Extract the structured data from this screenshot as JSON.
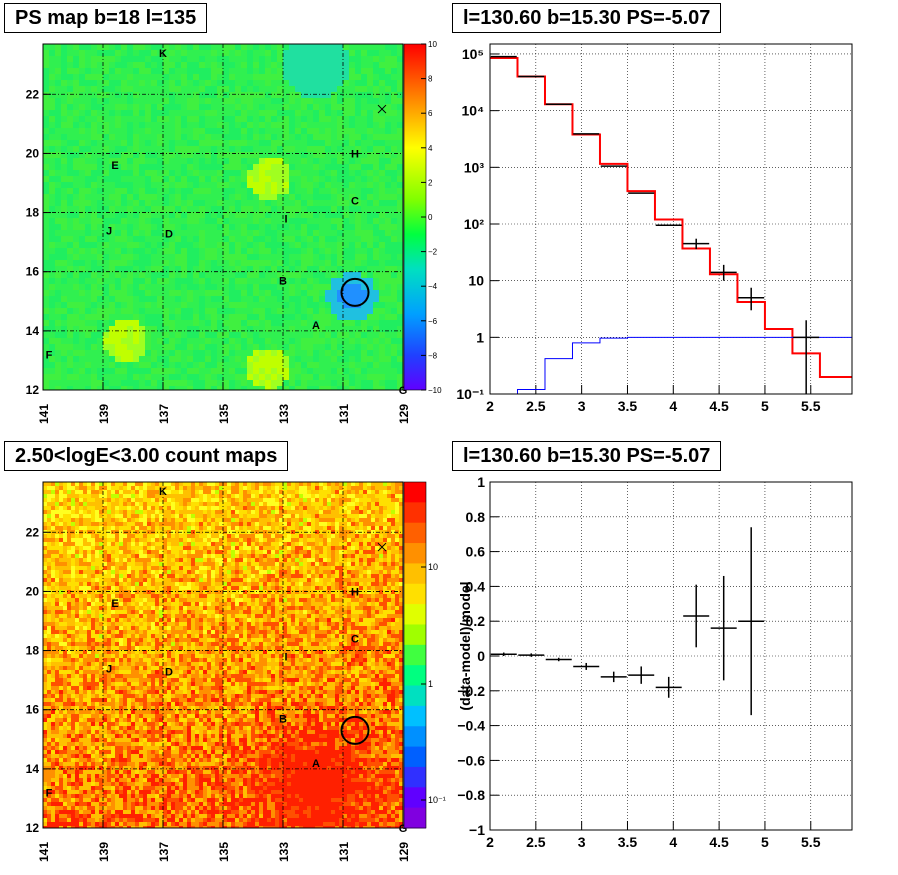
{
  "titles": {
    "tl": "PS map b=18 l=135",
    "tr": "l=130.60 b=15.30 PS=-5.07",
    "bl": "2.50<logE<3.00 count maps",
    "br": "l=130.60 b=15.30 PS=-5.07"
  },
  "maps": {
    "x_ticks": [
      "141",
      "139",
      "137",
      "135",
      "133",
      "131",
      "129"
    ],
    "y_ticks": [
      "12",
      "14",
      "16",
      "18",
      "20",
      "22"
    ],
    "xlim": [
      141,
      129
    ],
    "ylim": [
      12,
      23.7
    ],
    "labels": [
      {
        "t": "K",
        "l": 137.0,
        "b": 23.4
      },
      {
        "t": "H",
        "l": 130.6,
        "b": 20.0
      },
      {
        "t": "E",
        "l": 138.6,
        "b": 19.6
      },
      {
        "t": "C",
        "l": 130.6,
        "b": 18.4
      },
      {
        "t": "I",
        "l": 132.9,
        "b": 17.8
      },
      {
        "t": "J",
        "l": 138.8,
        "b": 17.4
      },
      {
        "t": "D",
        "l": 136.8,
        "b": 17.3
      },
      {
        "t": "B",
        "l": 133.0,
        "b": 15.7
      },
      {
        "t": "A",
        "l": 131.9,
        "b": 14.2
      },
      {
        "t": "F",
        "l": 140.8,
        "b": 13.2
      },
      {
        "t": "G",
        "l": 129.0,
        "b": 12.0
      }
    ],
    "cross": {
      "l": 129.7,
      "b": 21.5
    },
    "circle": {
      "l": 130.6,
      "b": 15.3,
      "r": 0.45
    },
    "ps_colorbar": {
      "min": -10,
      "max": 10,
      "ticks": [
        "10",
        "8",
        "6",
        "4",
        "2",
        "0",
        "−2",
        "−4",
        "−6",
        "−8",
        "−10"
      ]
    },
    "count_colorbar": {
      "ticks": [
        "10",
        "1",
        "10⁻¹"
      ]
    }
  },
  "chart_data": [
    {
      "type": "line",
      "panel": "top-right",
      "xlim": [
        2.0,
        5.95
      ],
      "ylog": true,
      "ylim": [
        0.1,
        150000
      ],
      "x_ticks": [
        "2",
        "2.5",
        "3",
        "3.5",
        "4",
        "4.5",
        "5",
        "5.5"
      ],
      "y_ticks": [
        "10⁵",
        "10⁴",
        "10³",
        "10²",
        "10",
        "1",
        "10⁻¹"
      ],
      "grid": true,
      "series": [
        {
          "color": "#ff0000",
          "style": "step",
          "edges": [
            2.0,
            2.3,
            2.6,
            2.9,
            3.2,
            3.5,
            3.8,
            4.1,
            4.4,
            4.7,
            5.0,
            5.3,
            5.6,
            5.95
          ],
          "values": [
            85000,
            40000,
            13000,
            3800,
            1150,
            380,
            120,
            37,
            13,
            4.2,
            1.4,
            0.52,
            0.2
          ]
        },
        {
          "color": "#0000ff",
          "style": "step",
          "edges": [
            2.0,
            2.3,
            2.6,
            2.9,
            3.2,
            3.5,
            5.95
          ],
          "values": [
            0.1,
            0.12,
            0.42,
            0.8,
            0.97,
            1.0
          ]
        },
        {
          "color": "#000000",
          "style": "points",
          "points": [
            {
              "x": 2.15,
              "y": 90000
            },
            {
              "x": 2.45,
              "y": 40000
            },
            {
              "x": 2.75,
              "y": 13000
            },
            {
              "x": 3.05,
              "y": 3900
            },
            {
              "x": 3.35,
              "y": 1050
            },
            {
              "x": 3.65,
              "y": 350
            },
            {
              "x": 3.95,
              "y": 95
            },
            {
              "x": 4.25,
              "y": 45,
              "lo": 36,
              "hi": 55
            },
            {
              "x": 4.55,
              "y": 14,
              "lo": 10,
              "hi": 19
            },
            {
              "x": 4.85,
              "y": 5,
              "lo": 3,
              "hi": 7.5
            },
            {
              "x": 5.45,
              "y": 1,
              "lo": 0.1,
              "hi": 2
            }
          ]
        }
      ]
    },
    {
      "type": "scatter",
      "panel": "bottom-right",
      "xlim": [
        2.0,
        5.95
      ],
      "ylim": [
        -1,
        1
      ],
      "ylabel": "(data-model)/model",
      "x_ticks": [
        "2",
        "2.5",
        "3",
        "3.5",
        "4",
        "4.5",
        "5",
        "5.5"
      ],
      "y_ticks": [
        "1",
        "0.8",
        "0.6",
        "0.4",
        "0.2",
        "0",
        "−0.2",
        "−0.4",
        "−0.6",
        "−0.8",
        "−1"
      ],
      "grid": true,
      "points": [
        {
          "x": 2.15,
          "y": 0.01,
          "err": 0.01
        },
        {
          "x": 2.45,
          "y": 0.005,
          "err": 0.01
        },
        {
          "x": 2.75,
          "y": -0.02,
          "err": 0.01
        },
        {
          "x": 3.05,
          "y": -0.06,
          "err": 0.02
        },
        {
          "x": 3.35,
          "y": -0.12,
          "err": 0.03
        },
        {
          "x": 3.65,
          "y": -0.11,
          "err": 0.05
        },
        {
          "x": 3.95,
          "y": -0.18,
          "err": 0.06
        },
        {
          "x": 4.25,
          "y": 0.23,
          "err": 0.18
        },
        {
          "x": 4.55,
          "y": 0.16,
          "err": 0.3
        },
        {
          "x": 4.85,
          "y": 0.2,
          "err": 0.54
        }
      ]
    }
  ]
}
